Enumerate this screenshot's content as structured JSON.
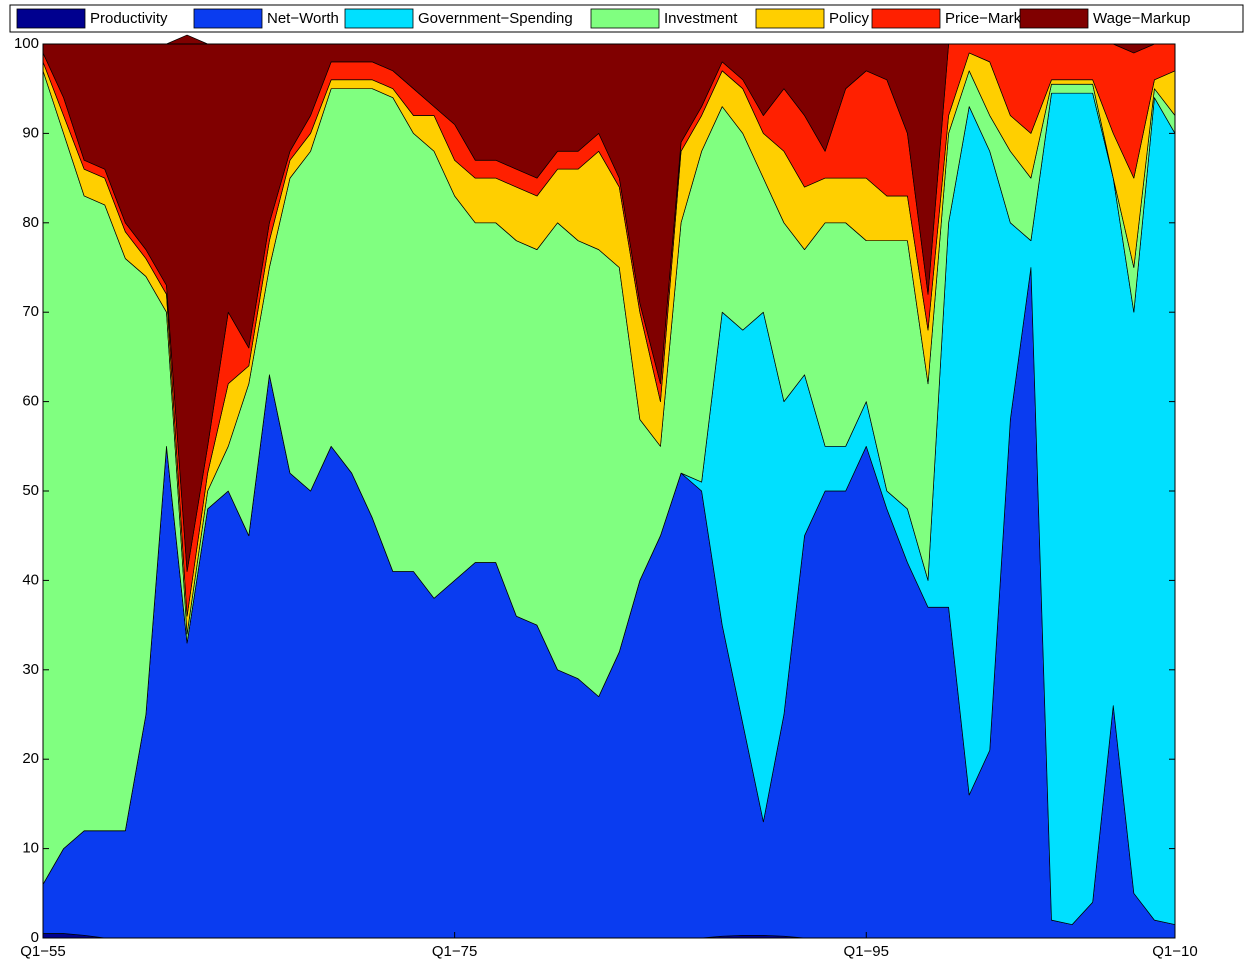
{
  "chart_data": {
    "type": "stacked_area",
    "x": [
      1955,
      1956,
      1957,
      1958,
      1959,
      1960,
      1961,
      1962,
      1963,
      1964,
      1965,
      1966,
      1967,
      1968,
      1969,
      1970,
      1971,
      1972,
      1973,
      1974,
      1975,
      1976,
      1977,
      1978,
      1979,
      1980,
      1981,
      1982,
      1983,
      1984,
      1985,
      1986,
      1987,
      1988,
      1989,
      1990,
      1991,
      1992,
      1993,
      1994,
      1995,
      1996,
      1997,
      1998,
      1999,
      2000,
      2001,
      2002,
      2003,
      2004,
      2005,
      2006,
      2007,
      2008,
      2009,
      2010
    ],
    "xlim": [
      1955,
      2010
    ],
    "xticks": [
      {
        "value": 1955,
        "label": "Q1−55"
      },
      {
        "value": 1975,
        "label": "Q1−75"
      },
      {
        "value": 1995,
        "label": "Q1−95"
      },
      {
        "value": 2010,
        "label": "Q1−10"
      }
    ],
    "ylim": [
      0,
      100
    ],
    "yticks": [
      0,
      10,
      20,
      30,
      40,
      50,
      60,
      70,
      80,
      90,
      100
    ],
    "series": [
      {
        "name": "Productivity",
        "color": "#00008f",
        "values": [
          0.5,
          0.5,
          0.3,
          0,
          0,
          0,
          0,
          0,
          0,
          0,
          0,
          0,
          0,
          0,
          0,
          0,
          0,
          0,
          0,
          0,
          0,
          0,
          0,
          0,
          0,
          0,
          0,
          0,
          0,
          0,
          0,
          0,
          0,
          0.2,
          0.3,
          0.3,
          0.2,
          0,
          0,
          0,
          0,
          0,
          0,
          0,
          0,
          0,
          0,
          0,
          0,
          0,
          0,
          0,
          0,
          0,
          0,
          0
        ]
      },
      {
        "name": "Net−Worth",
        "color": "#0a3cf0",
        "values": [
          5.5,
          9.5,
          11.7,
          12,
          12,
          25,
          55,
          33,
          48,
          50,
          45,
          63,
          52,
          50,
          55,
          52,
          47,
          41,
          41,
          38,
          40,
          42,
          42,
          36,
          35,
          30,
          29,
          27,
          32,
          40,
          45,
          52,
          50,
          34.8,
          23.7,
          12.7,
          24.8,
          45,
          50,
          50,
          55,
          48,
          42,
          37,
          37,
          16,
          21,
          58,
          75,
          2,
          1.5,
          4,
          26,
          5,
          2,
          1.5
        ]
      },
      {
        "name": "Government−Spending",
        "color": "#00e0ff",
        "values": [
          0,
          0,
          0,
          0,
          0,
          0,
          0,
          0,
          0,
          0,
          0,
          0,
          0,
          0,
          0,
          0,
          0,
          0,
          0,
          0,
          0,
          0,
          0,
          0,
          0,
          0,
          0,
          0,
          0,
          0,
          0,
          0,
          1,
          35,
          44,
          57,
          35,
          18,
          5,
          5,
          5,
          2,
          6,
          3,
          43,
          77,
          67,
          22,
          3,
          92.5,
          93,
          90.5,
          59,
          65,
          92,
          88.5
        ]
      },
      {
        "name": "Investment",
        "color": "#80ff80",
        "values": [
          91,
          80,
          71,
          70,
          64,
          49,
          15,
          1,
          2,
          5,
          17,
          12,
          33,
          38,
          40,
          43,
          48,
          53,
          49,
          50,
          43,
          38,
          38,
          42,
          42,
          50,
          49,
          50,
          43,
          18,
          10,
          28,
          37,
          23,
          22,
          15,
          20,
          14,
          25,
          25,
          18,
          28,
          30,
          22,
          10,
          4,
          4,
          8,
          7,
          1,
          1,
          1,
          0,
          5,
          1,
          2
        ]
      },
      {
        "name": "Policy",
        "color": "#ffcf00",
        "values": [
          1,
          2,
          3,
          3,
          3,
          2,
          2,
          2,
          2,
          7,
          2,
          3,
          2,
          2,
          1,
          1,
          1,
          1,
          2,
          4,
          4,
          5,
          5,
          6,
          6,
          6,
          8,
          11,
          9,
          12,
          5,
          8,
          4,
          4,
          5,
          5,
          8,
          7,
          5,
          5,
          7,
          5,
          5,
          6,
          2,
          2,
          6,
          4,
          5,
          0.5,
          0.5,
          0.5,
          5,
          10,
          1,
          5
        ]
      },
      {
        "name": "Price−Markup",
        "color": "#ff2000",
        "values": [
          1,
          2,
          1,
          1,
          1,
          1,
          1,
          5,
          3,
          8,
          2,
          2,
          1,
          2,
          2,
          2,
          2,
          2,
          3,
          1,
          4,
          2,
          2,
          2,
          2,
          2,
          2,
          2,
          1,
          1,
          2,
          1,
          1,
          1,
          1,
          2,
          7,
          8,
          3,
          10,
          12,
          13,
          7,
          4,
          8,
          1,
          2,
          8,
          10,
          4,
          4,
          4,
          10,
          14,
          4,
          3
        ]
      },
      {
        "name": "Wage−Markup",
        "color": "#800000",
        "values": [
          1,
          6,
          13,
          14,
          20,
          23,
          27,
          60,
          45,
          30,
          34,
          20,
          12,
          8,
          2,
          2,
          2,
          3,
          5,
          7,
          9,
          13,
          13,
          14,
          15,
          12,
          12,
          10,
          15,
          29,
          38,
          11,
          7,
          2,
          4,
          8,
          5,
          8,
          12,
          5,
          3,
          4,
          10,
          28,
          0,
          0,
          0,
          0,
          0,
          0,
          0,
          0,
          0,
          1,
          0,
          0
        ]
      }
    ]
  }
}
